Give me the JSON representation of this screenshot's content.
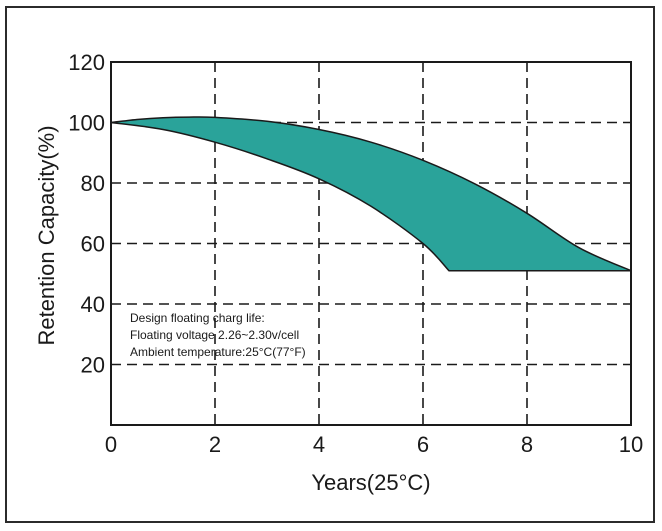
{
  "chart_data": {
    "type": "area",
    "title": "",
    "xlabel": "Years(25°C)",
    "ylabel": "Retention Capacity(%)",
    "xlim": [
      0,
      10
    ],
    "ylim": [
      0,
      120
    ],
    "x_ticks": [
      0,
      2,
      4,
      6,
      8,
      10
    ],
    "y_ticks": [
      20,
      40,
      60,
      80,
      100,
      120
    ],
    "grid": "dashed",
    "fill_color": "#2aa39a",
    "upper_bound": {
      "x": [
        0,
        0.5,
        1,
        1.5,
        2,
        3,
        4,
        5,
        6,
        7,
        8,
        9,
        10
      ],
      "y": [
        100,
        101,
        101.6,
        101.8,
        101.7,
        100.4,
        97.7,
        93.5,
        87.5,
        79.7,
        70,
        58.6,
        51
      ]
    },
    "lower_bound": {
      "x": [
        0,
        1,
        2,
        3,
        4,
        5,
        6,
        6.5,
        10
      ],
      "y": [
        100,
        97.7,
        93.5,
        88,
        81.4,
        72.3,
        60,
        51,
        51
      ]
    },
    "annotations": [
      "Design floating charg life:",
      "Floating voltage 2.26~2.30v/cell",
      "Ambient temperature:25°C(77°F)"
    ]
  }
}
